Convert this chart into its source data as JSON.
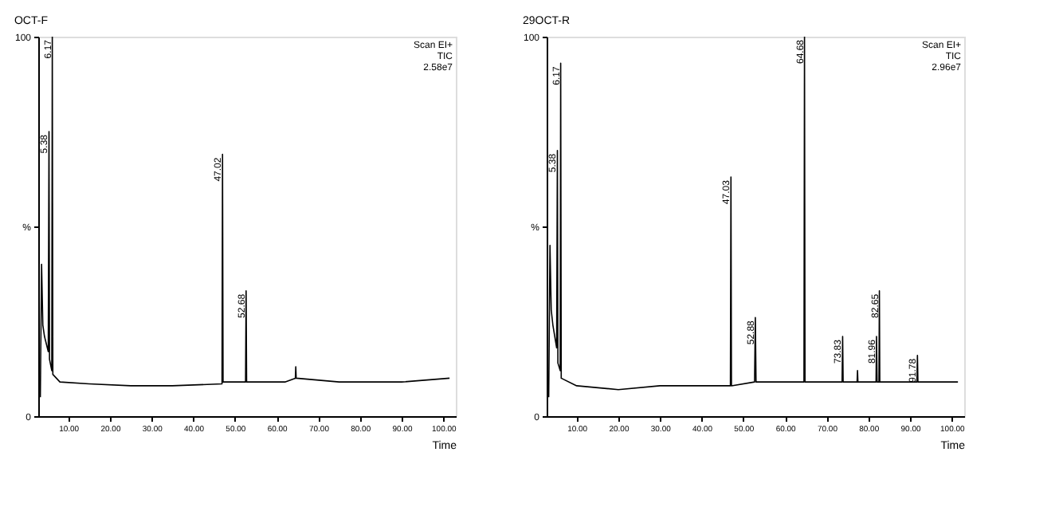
{
  "chart_data": [
    {
      "type": "line",
      "title": "OCT-F",
      "xlabel": "Time",
      "grid": false,
      "marker": "none",
      "xlim": [
        2.8,
        103
      ],
      "ylim": [
        0,
        100
      ],
      "xticks": [
        {
          "value": 10,
          "label": "10.00"
        },
        {
          "value": 20,
          "label": "20.00"
        },
        {
          "value": 30,
          "label": "30.00"
        },
        {
          "value": 40,
          "label": "40.00"
        },
        {
          "value": 50,
          "label": "50.00"
        },
        {
          "value": 60,
          "label": "60.00"
        },
        {
          "value": 70,
          "label": "70.00"
        },
        {
          "value": 80,
          "label": "80.00"
        },
        {
          "value": 90,
          "label": "90.00"
        },
        {
          "value": 100,
          "label": "100.00"
        }
      ],
      "yticks": [
        0,
        {
          "value": 50,
          "label": "%"
        },
        100
      ],
      "series": [
        {
          "color": "#000000",
          "x": [
            3.3,
            3.6,
            3.9,
            4.3,
            5.2,
            5.38,
            5.5,
            6.05,
            6.17,
            6.3,
            8,
            15,
            25,
            35,
            46.9,
            47.02,
            47.15,
            52.55,
            52.68,
            52.8,
            62,
            64.5,
            64.6,
            64.7,
            75,
            90,
            101.5
          ],
          "values": [
            5,
            40,
            24,
            21,
            17,
            75,
            15,
            12,
            100,
            11,
            9,
            8.5,
            8,
            8,
            8.5,
            69,
            9,
            9,
            33,
            9,
            9,
            10,
            13,
            10,
            9,
            9,
            10
          ]
        }
      ],
      "annotations": [
        {
          "text": "5.38",
          "x": 5.38,
          "y": 75
        },
        {
          "text": "6.17",
          "x": 6.17,
          "y": 100
        },
        {
          "text": "47.02",
          "x": 47.02,
          "y": 69
        },
        {
          "text": "52.68",
          "x": 52.68,
          "y": 33
        },
        "Scan EI+",
        "TIC",
        "2.58e7"
      ]
    },
    {
      "type": "line",
      "title": "29OCT-R",
      "xlabel": "Time",
      "grid": false,
      "marker": "none",
      "xlim": [
        2.8,
        103
      ],
      "ylim": [
        0,
        100
      ],
      "xticks": [
        {
          "value": 10,
          "label": "10.00"
        },
        {
          "value": 20,
          "label": "20.00"
        },
        {
          "value": 30,
          "label": "30.00"
        },
        {
          "value": 40,
          "label": "40.00"
        },
        {
          "value": 50,
          "label": "50.00"
        },
        {
          "value": 60,
          "label": "60.00"
        },
        {
          "value": 70,
          "label": "70.00"
        },
        {
          "value": 80,
          "label": "80.00"
        },
        {
          "value": 90,
          "label": "90.00"
        },
        {
          "value": 100,
          "label": "100.00"
        }
      ],
      "yticks": [
        0,
        {
          "value": 50,
          "label": "%"
        },
        100
      ],
      "series": [
        {
          "color": "#000000",
          "x": [
            3.3,
            3.6,
            3.9,
            4.3,
            5.2,
            5.38,
            5.5,
            6.05,
            6.17,
            6.3,
            10,
            20,
            30,
            40,
            46.9,
            47.03,
            47.15,
            52.7,
            52.88,
            53.05,
            60,
            64.55,
            64.68,
            64.8,
            73.7,
            73.83,
            73.95,
            77.3,
            77.4,
            77.5,
            81.85,
            81.96,
            82.1,
            82.55,
            82.65,
            82.75,
            91.65,
            91.78,
            91.9,
            101.5
          ],
          "values": [
            5,
            45,
            28,
            24,
            18,
            70,
            14,
            12,
            93,
            10,
            8,
            7,
            8,
            8,
            8,
            63,
            8,
            9,
            26,
            9,
            9,
            9,
            100,
            9,
            9,
            21,
            9,
            9,
            12,
            9,
            9,
            21,
            9,
            9,
            33,
            9,
            9,
            16,
            9,
            9
          ]
        }
      ],
      "annotations": [
        {
          "text": "5.38",
          "x": 5.38,
          "y": 70
        },
        {
          "text": "6.17",
          "x": 6.17,
          "y": 93
        },
        {
          "text": "47.03",
          "x": 47.03,
          "y": 63
        },
        {
          "text": "52.88",
          "x": 52.88,
          "y": 26
        },
        {
          "text": "64.68",
          "x": 64.68,
          "y": 100
        },
        {
          "text": "73.83",
          "x": 73.83,
          "y": 21
        },
        {
          "text": "81.96",
          "x": 81.96,
          "y": 21
        },
        {
          "text": "82.65",
          "x": 82.65,
          "y": 33
        },
        {
          "text": "91.78",
          "x": 91.78,
          "y": 16
        },
        "Scan EI+",
        "TIC",
        "2.96e7"
      ]
    }
  ]
}
